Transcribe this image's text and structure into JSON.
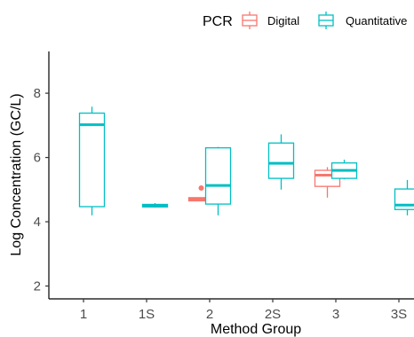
{
  "chart_data": {
    "type": "boxplot",
    "xlabel": "Method Group",
    "ylabel": "Log Concentration (GC/L)",
    "categories": [
      "1",
      "1S",
      "2",
      "2S",
      "3",
      "3S"
    ],
    "ylim": [
      1.6,
      9.3
    ],
    "yticks": [
      2,
      4,
      6,
      8
    ],
    "grid": false,
    "legend": {
      "title": "PCR",
      "position": "top-right",
      "entries": [
        "Digital",
        "Quantitative"
      ]
    },
    "series": [
      {
        "name": "Digital",
        "color": "#F8766D",
        "boxes": [
          {
            "category": "2",
            "min": 4.65,
            "q1": 4.65,
            "median": 4.7,
            "q3": 4.75,
            "max": 4.75,
            "outliers": [
              5.05
            ]
          },
          {
            "category": "3",
            "min": 4.75,
            "q1": 5.1,
            "median": 5.45,
            "q3": 5.6,
            "max": 5.7,
            "outliers": []
          }
        ]
      },
      {
        "name": "Quantitative",
        "color": "#00BFC4",
        "boxes": [
          {
            "category": "1",
            "min": 4.2,
            "q1": 4.47,
            "median": 7.02,
            "q3": 7.38,
            "max": 7.58,
            "outliers": []
          },
          {
            "category": "1S",
            "min": 4.44,
            "q1": 4.46,
            "median": 4.5,
            "q3": 4.54,
            "max": 4.58,
            "outliers": []
          },
          {
            "category": "2",
            "min": 4.2,
            "q1": 4.55,
            "median": 5.13,
            "q3": 6.3,
            "max": 6.33,
            "outliers": []
          },
          {
            "category": "2S",
            "min": 5.0,
            "q1": 5.35,
            "median": 5.82,
            "q3": 6.45,
            "max": 6.72,
            "outliers": []
          },
          {
            "category": "3",
            "min": 5.32,
            "q1": 5.35,
            "median": 5.6,
            "q3": 5.83,
            "max": 5.93,
            "outliers": []
          },
          {
            "category": "3S",
            "min": 4.2,
            "q1": 4.38,
            "median": 4.52,
            "q3": 5.02,
            "max": 5.3,
            "outliers": []
          }
        ]
      }
    ]
  }
}
